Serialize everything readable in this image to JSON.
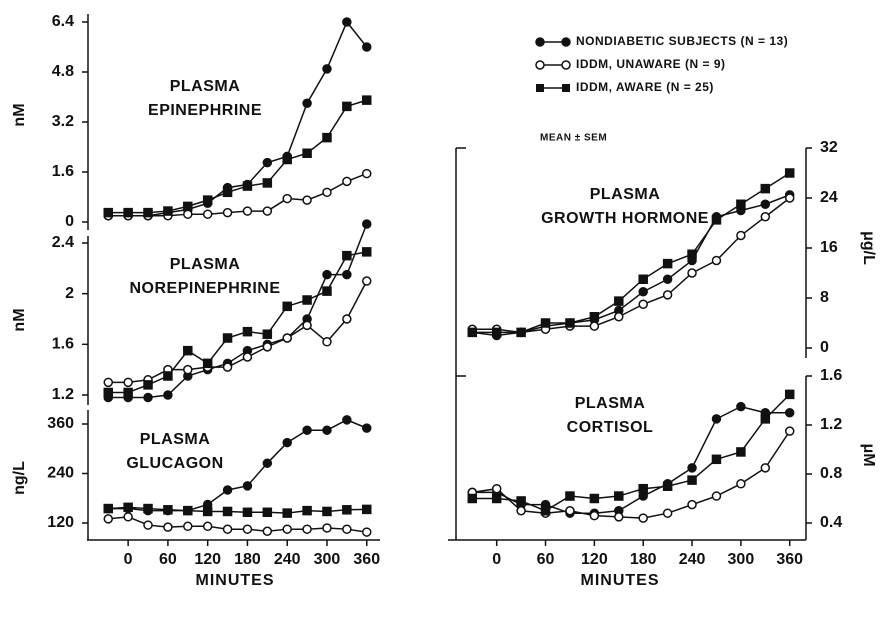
{
  "legend_note": "MEAN ± SEM",
  "chart_data": [
    {
      "type": "line",
      "title": [
        "PLASMA",
        "EPINEPHRINE"
      ],
      "ylabel": "nM",
      "x": [
        -30,
        0,
        30,
        60,
        90,
        120,
        150,
        180,
        210,
        240,
        270,
        300,
        330,
        360
      ],
      "xlim": [
        -50,
        380
      ],
      "ylim": [
        0,
        6.4
      ],
      "yticks": [
        0,
        1.6,
        3.2,
        4.8,
        6.4
      ],
      "series": [
        {
          "name": "NONDIABETIC SUBJECTS (N = 13)",
          "color": "#111",
          "marker": "filled-circle",
          "values": [
            0.2,
            0.2,
            0.2,
            0.3,
            0.4,
            0.6,
            1.1,
            1.2,
            1.9,
            2.1,
            3.8,
            4.9,
            6.4,
            5.6
          ]
        },
        {
          "name": "IDDM, UNAWARE (N = 9)",
          "color": "#111",
          "marker": "open-circle",
          "values": [
            0.2,
            0.2,
            0.2,
            0.2,
            0.25,
            0.25,
            0.3,
            0.35,
            0.35,
            0.75,
            0.7,
            0.95,
            1.3,
            1.55
          ]
        },
        {
          "name": "IDDM, AWARE (N = 25)",
          "color": "#111",
          "marker": "square",
          "values": [
            0.3,
            0.3,
            0.3,
            0.35,
            0.5,
            0.7,
            0.95,
            1.15,
            1.25,
            2.0,
            2.2,
            2.7,
            3.7,
            3.9
          ]
        }
      ]
    },
    {
      "type": "line",
      "title": [
        "PLASMA",
        "NOREPINEPHRINE"
      ],
      "ylabel": "nM",
      "x": [
        -30,
        0,
        30,
        60,
        90,
        120,
        150,
        180,
        210,
        240,
        270,
        300,
        330,
        360
      ],
      "xlim": [
        -50,
        380
      ],
      "ylim": [
        1.2,
        2.4
      ],
      "yticks": [
        1.2,
        1.6,
        2.0,
        2.4
      ],
      "series": [
        {
          "color": "#111",
          "marker": "filled-circle",
          "values": [
            1.18,
            1.18,
            1.18,
            1.2,
            1.35,
            1.4,
            1.45,
            1.55,
            1.6,
            1.65,
            1.8,
            2.15,
            2.15,
            2.55
          ]
        },
        {
          "color": "#111",
          "marker": "open-circle",
          "values": [
            1.3,
            1.3,
            1.32,
            1.4,
            1.4,
            1.42,
            1.42,
            1.5,
            1.58,
            1.65,
            1.75,
            1.62,
            1.8,
            2.1
          ]
        },
        {
          "color": "#111",
          "marker": "square",
          "values": [
            1.22,
            1.22,
            1.28,
            1.35,
            1.55,
            1.45,
            1.65,
            1.7,
            1.68,
            1.9,
            1.95,
            2.02,
            2.3,
            2.33
          ]
        }
      ]
    },
    {
      "type": "line",
      "title": [
        "PLASMA",
        "GLUCAGON"
      ],
      "ylabel": "ng/L",
      "xlabel": "MINUTES",
      "x": [
        -30,
        0,
        30,
        60,
        90,
        120,
        150,
        180,
        210,
        240,
        270,
        300,
        330,
        360
      ],
      "xlim": [
        -50,
        380
      ],
      "xticks": [
        0,
        60,
        120,
        180,
        240,
        300,
        360
      ],
      "ylim": [
        120,
        360
      ],
      "yticks": [
        120,
        240,
        360
      ],
      "series": [
        {
          "color": "#111",
          "marker": "filled-circle",
          "values": [
            155,
            155,
            150,
            150,
            150,
            165,
            200,
            210,
            265,
            315,
            345,
            345,
            370,
            350
          ]
        },
        {
          "color": "#111",
          "marker": "open-circle",
          "values": [
            130,
            135,
            115,
            110,
            112,
            112,
            105,
            105,
            100,
            105,
            105,
            108,
            105,
            98
          ]
        },
        {
          "color": "#111",
          "marker": "square",
          "values": [
            155,
            158,
            155,
            152,
            150,
            148,
            148,
            146,
            146,
            144,
            150,
            148,
            152,
            153
          ]
        }
      ]
    },
    {
      "type": "line",
      "title": [
        "PLASMA",
        "GROWTH HORMONE"
      ],
      "ylabel": "μg/L",
      "x": [
        -30,
        0,
        30,
        60,
        90,
        120,
        150,
        180,
        210,
        240,
        270,
        300,
        330,
        360
      ],
      "xlim": [
        -50,
        380
      ],
      "ylim": [
        0,
        32
      ],
      "yticks": [
        0,
        8,
        16,
        24,
        32
      ],
      "series": [
        {
          "color": "#111",
          "marker": "filled-circle",
          "values": [
            2.5,
            2,
            2.5,
            3.5,
            4,
            4.5,
            6,
            9,
            11,
            14,
            21,
            22,
            23,
            24.5
          ]
        },
        {
          "color": "#111",
          "marker": "open-circle",
          "values": [
            3,
            3,
            2.5,
            3,
            3.5,
            3.5,
            5,
            7,
            8.5,
            12,
            14,
            18,
            21,
            24
          ]
        },
        {
          "color": "#111",
          "marker": "square",
          "values": [
            2.5,
            2.5,
            2.5,
            4,
            4,
            5,
            7.5,
            11,
            13.5,
            15,
            20.5,
            23,
            25.5,
            28
          ]
        }
      ]
    },
    {
      "type": "line",
      "title": [
        "PLASMA",
        "CORTISOL"
      ],
      "ylabel": "μM",
      "xlabel": "MINUTES",
      "x": [
        -30,
        0,
        30,
        60,
        90,
        120,
        150,
        180,
        210,
        240,
        270,
        300,
        330,
        360
      ],
      "xlim": [
        -50,
        380
      ],
      "xticks": [
        0,
        60,
        120,
        180,
        240,
        300,
        360
      ],
      "ylim": [
        0.4,
        1.6
      ],
      "yticks": [
        0.4,
        0.8,
        1.2,
        1.6
      ],
      "series": [
        {
          "color": "#111",
          "marker": "filled-circle",
          "values": [
            0.65,
            0.65,
            0.55,
            0.55,
            0.48,
            0.48,
            0.5,
            0.62,
            0.72,
            0.85,
            1.25,
            1.35,
            1.3,
            1.3
          ]
        },
        {
          "color": "#111",
          "marker": "open-circle",
          "values": [
            0.65,
            0.68,
            0.5,
            0.48,
            0.5,
            0.46,
            0.45,
            0.44,
            0.48,
            0.55,
            0.62,
            0.72,
            0.85,
            1.15
          ]
        },
        {
          "color": "#111",
          "marker": "square",
          "values": [
            0.6,
            0.6,
            0.58,
            0.5,
            0.62,
            0.6,
            0.62,
            0.68,
            0.7,
            0.75,
            0.92,
            0.98,
            1.25,
            1.45
          ]
        }
      ]
    }
  ]
}
